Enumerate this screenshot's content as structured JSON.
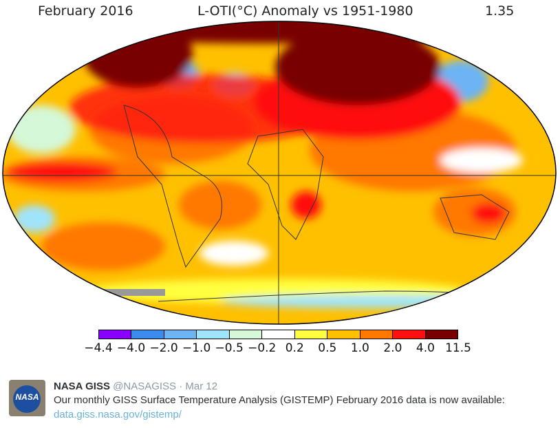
{
  "map_header": {
    "date": "February 2016",
    "title": "L-OTI(°C) Anomaly vs 1951-1980",
    "global_mean": "1.35"
  },
  "colorbar": {
    "ticks": [
      "−4.4",
      "−4.0",
      "−2.0",
      "−1.0",
      "−0.5",
      "−0.2",
      "0.2",
      "0.5",
      "1.0",
      "2.0",
      "4.0",
      "11.5"
    ],
    "colors": [
      "#8a00ff",
      "#3c8cf0",
      "#6cb4f4",
      "#a0e4fc",
      "#d4f8d8",
      "#ffffff",
      "#ffff40",
      "#ffc000",
      "#ff7800",
      "#ff1010",
      "#780000"
    ]
  },
  "tweet": {
    "name": "NASA GISS",
    "handle": "@NASAGISS",
    "separator": "·",
    "date": "Mar 12",
    "text": "Our monthly GISS Surface Temperature Analysis (GISTEMP) February 2016 data is now available:",
    "link": "data.giss.nasa.gov/gistemp/",
    "avatar_text": "NASA"
  }
}
